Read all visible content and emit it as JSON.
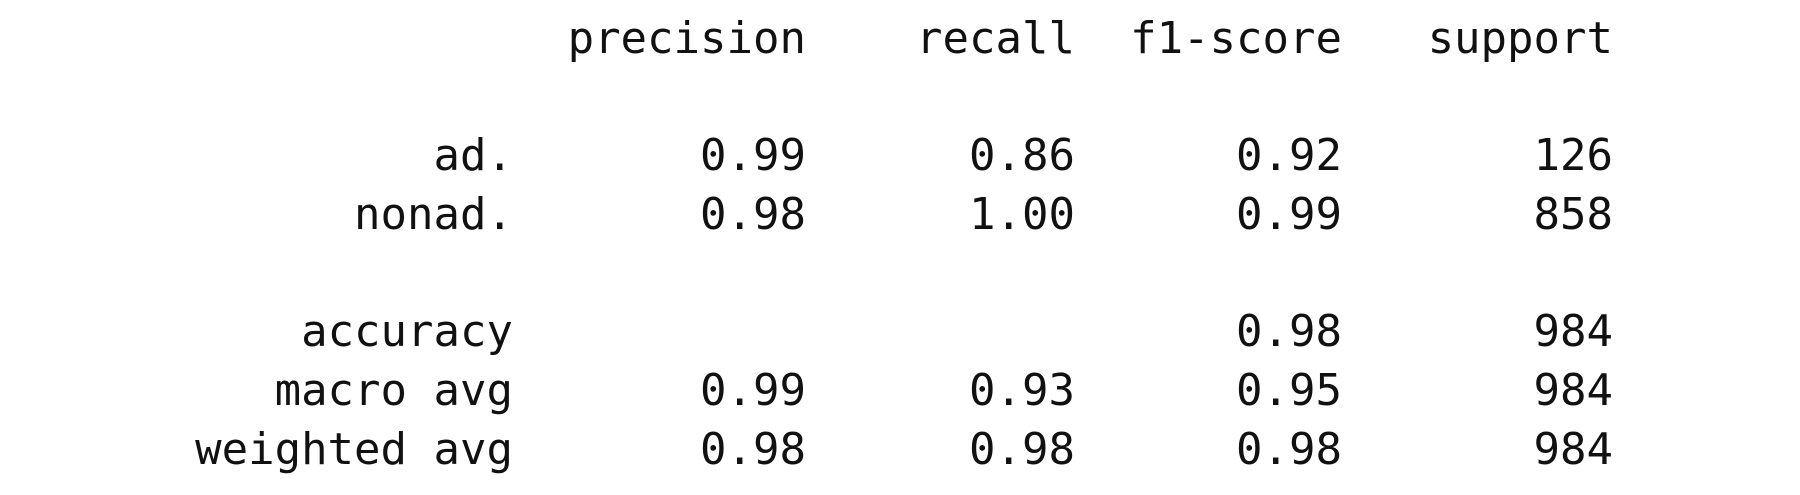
{
  "header": {
    "precision": "precision",
    "recall": "recall",
    "f1": "f1-score",
    "support": "support"
  },
  "rows": {
    "ad": {
      "label": "ad.",
      "precision": "0.99",
      "recall": "0.86",
      "f1": "0.92",
      "support": "126"
    },
    "nonad": {
      "label": "nonad.",
      "precision": "0.98",
      "recall": "1.00",
      "f1": "0.99",
      "support": "858"
    },
    "accuracy": {
      "label": "accuracy",
      "precision": "",
      "recall": "",
      "f1": "0.98",
      "support": "984"
    },
    "macro": {
      "label": "macro avg",
      "precision": "0.99",
      "recall": "0.93",
      "f1": "0.95",
      "support": "984"
    },
    "weighted": {
      "label": "weighted avg",
      "precision": "0.98",
      "recall": "0.98",
      "f1": "0.98",
      "support": "984"
    }
  }
}
